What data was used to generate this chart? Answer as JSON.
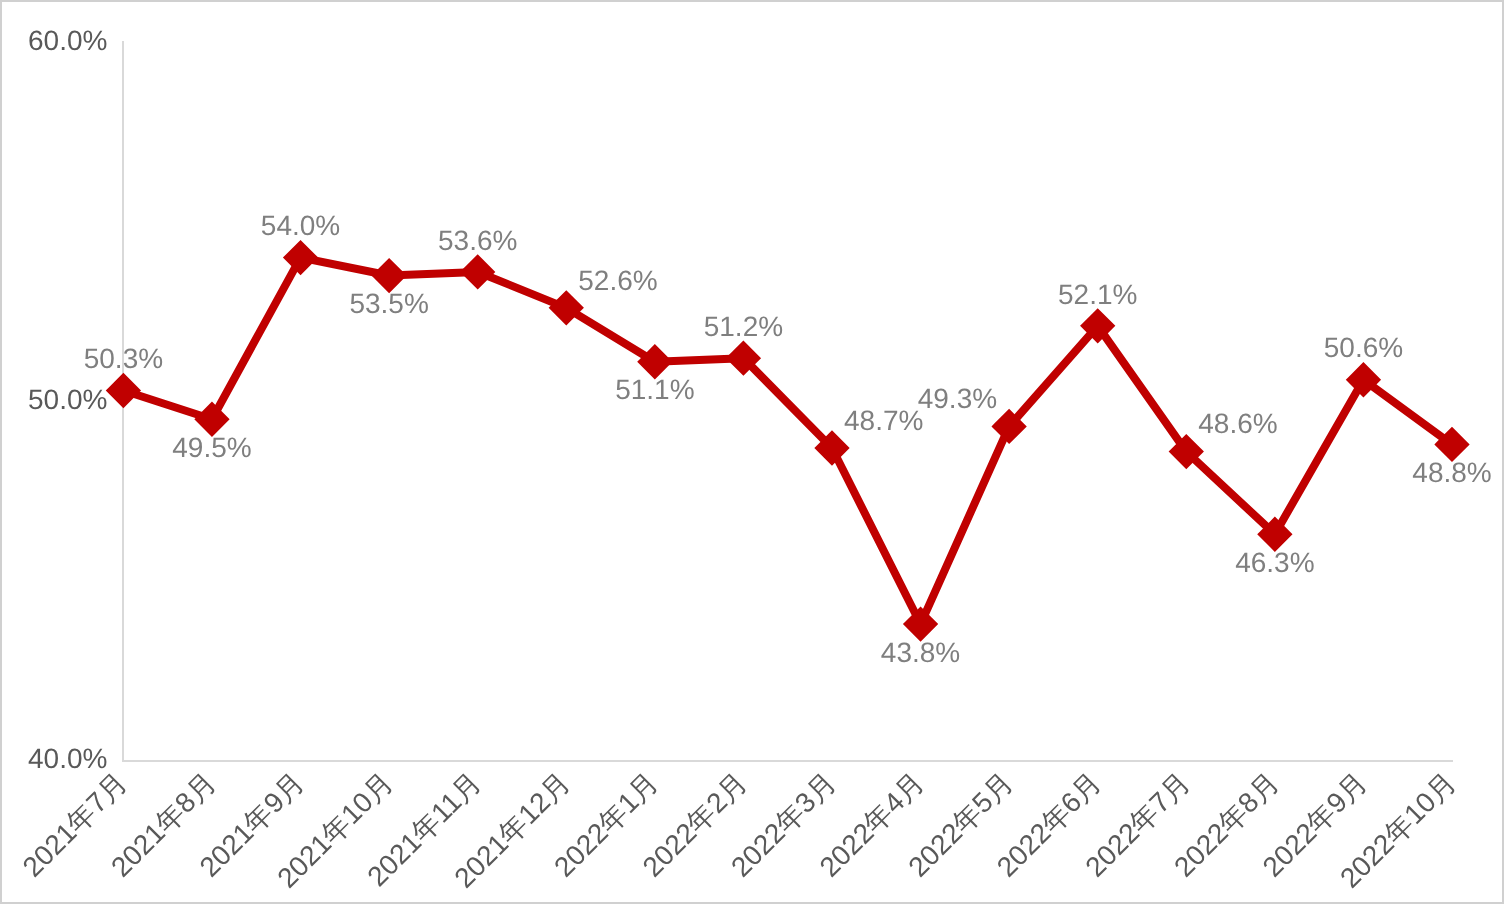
{
  "chart_data": {
    "type": "line",
    "categories": [
      "2021年7月",
      "2021年8月",
      "2021年9月",
      "2021年10月",
      "2021年11月",
      "2021年12月",
      "2022年1月",
      "2022年2月",
      "2022年3月",
      "2022年4月",
      "2022年5月",
      "2022年6月",
      "2022年7月",
      "2022年8月",
      "2022年9月",
      "2022年10月"
    ],
    "series": [
      {
        "color": "#c00000",
        "values": [
          50.3,
          49.5,
          54.0,
          53.5,
          53.6,
          52.6,
          51.1,
          51.2,
          48.7,
          43.8,
          49.3,
          52.1,
          48.6,
          46.3,
          50.6,
          48.8
        ],
        "value_labels": [
          "50.3%",
          "49.5%",
          "54.0%",
          "53.5%",
          "53.6%",
          "52.6%",
          "51.1%",
          "51.2%",
          "48.7%",
          "43.8%",
          "49.3%",
          "52.1%",
          "48.6%",
          "46.3%",
          "50.6%",
          "48.8%"
        ]
      }
    ],
    "ylim": [
      40,
      60
    ],
    "yticks": [
      {
        "value": 40,
        "label": "40.0%"
      },
      {
        "value": 50,
        "label": "50.0%"
      },
      {
        "value": 60,
        "label": "60.0%"
      }
    ],
    "grid": false,
    "legend": false,
    "marker": "diamond",
    "line_style": "solid"
  }
}
